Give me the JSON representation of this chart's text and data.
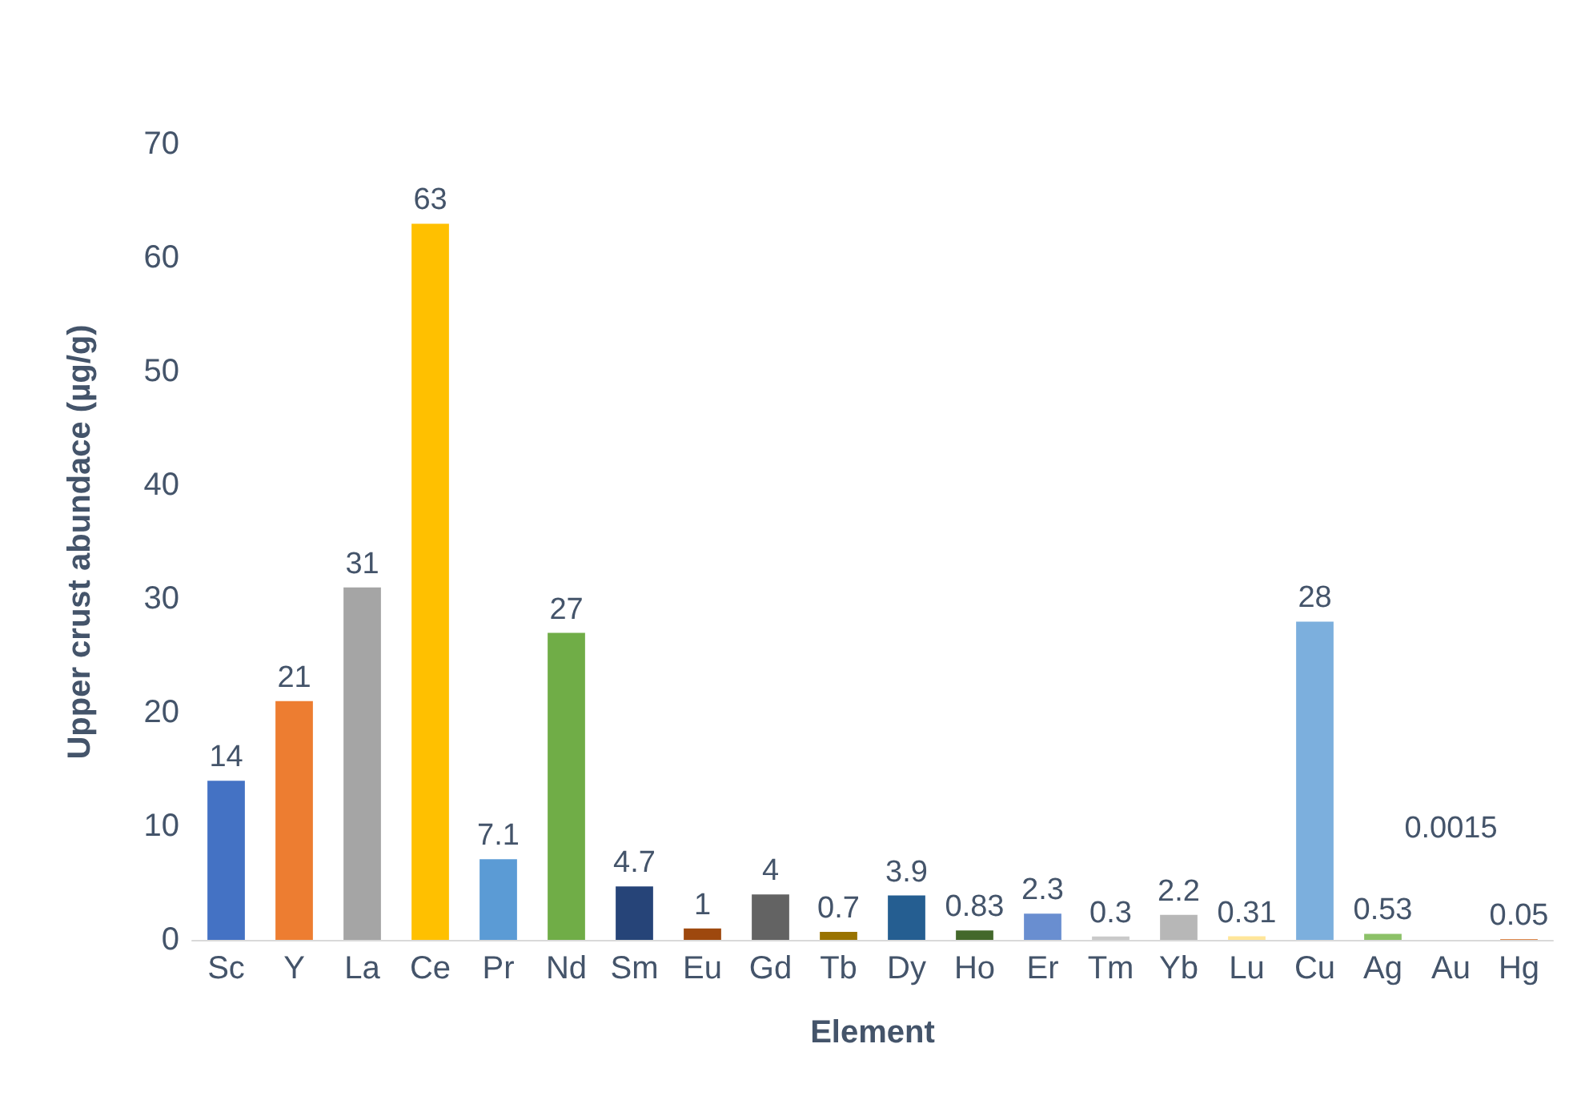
{
  "chart_data": {
    "type": "bar",
    "xlabel": "Element",
    "ylabel": "Upper crust abundace (µg/g)",
    "categories": [
      "Sc",
      "Y",
      "La",
      "Ce",
      "Pr",
      "Nd",
      "Sm",
      "Eu",
      "Gd",
      "Tb",
      "Dy",
      "Ho",
      "Er",
      "Tm",
      "Yb",
      "Lu",
      "Cu",
      "Ag",
      "Au",
      "Hg"
    ],
    "values": [
      14,
      21,
      31,
      63,
      7.1,
      27,
      4.7,
      1,
      4,
      0.7,
      3.9,
      0.83,
      2.3,
      0.3,
      2.2,
      0.31,
      28,
      0.53,
      0.0015,
      0.05
    ],
    "colors": [
      "#4472c4",
      "#ed7d31",
      "#a5a5a5",
      "#ffc000",
      "#5b9bd5",
      "#70ad47",
      "#264478",
      "#9e480e",
      "#636363",
      "#997300",
      "#255e91",
      "#43682b",
      "#698ed0",
      "#c9c9c9",
      "#b7b7b7",
      "#ffe699",
      "#7cafdd",
      "#8cc168",
      "#335aa1",
      "#d26012"
    ],
    "ylim": [
      0,
      70
    ],
    "yticks": [
      0,
      10,
      20,
      30,
      40,
      50,
      60,
      70
    ],
    "grid": false,
    "data_labels": true
  }
}
